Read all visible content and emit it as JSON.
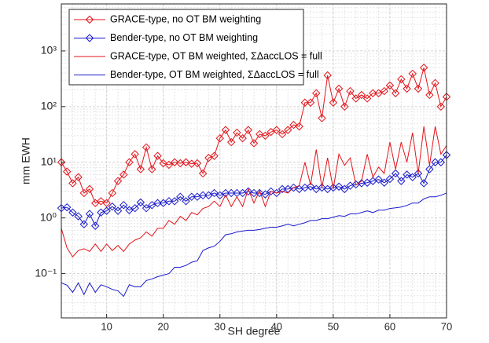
{
  "chart_data": {
    "type": "line",
    "xlabel": "SH degree",
    "ylabel": "mm EWH",
    "log_y": true,
    "grid": true,
    "minor_grid": true,
    "legend": "upper left",
    "xlim": [
      2,
      70
    ],
    "ylim": [
      0.016,
      7000
    ],
    "xticks": [
      10,
      20,
      30,
      40,
      50,
      60,
      70
    ],
    "yticks": [
      {
        "value": 0.1,
        "label": "10⁻¹"
      },
      {
        "value": 1,
        "label": "10⁰"
      },
      {
        "value": 10,
        "label": "10¹"
      },
      {
        "value": 100,
        "label": "10²"
      },
      {
        "value": 1000,
        "label": "10³"
      }
    ],
    "x": [
      2,
      3,
      4,
      5,
      6,
      7,
      8,
      9,
      10,
      11,
      12,
      13,
      14,
      15,
      16,
      17,
      18,
      19,
      20,
      21,
      22,
      23,
      24,
      25,
      26,
      27,
      28,
      29,
      30,
      31,
      32,
      33,
      34,
      35,
      36,
      37,
      38,
      39,
      40,
      41,
      42,
      43,
      44,
      45,
      46,
      47,
      48,
      49,
      50,
      51,
      52,
      53,
      54,
      55,
      56,
      57,
      58,
      59,
      60,
      61,
      62,
      63,
      64,
      65,
      66,
      67,
      68,
      69,
      70
    ],
    "series": [
      {
        "name": "GRACE-type, no OT BM weighting",
        "color": "#e3141b",
        "marker": "diamond",
        "values": [
          10,
          6.8,
          4.2,
          5.4,
          2.8,
          3.3,
          1.85,
          2.0,
          1.85,
          2.8,
          4.6,
          6,
          10,
          14,
          7.5,
          18.5,
          7.5,
          13,
          9.6,
          9,
          10,
          9.6,
          10,
          9.4,
          9.6,
          6.3,
          12,
          13,
          27,
          38,
          23,
          34,
          27,
          38,
          22,
          32,
          30,
          35,
          38,
          32,
          38,
          47,
          44,
          118,
          118,
          174,
          62,
          365,
          118,
          210,
          100,
          190,
          140,
          162,
          140,
          174,
          174,
          190,
          240,
          174,
          310,
          210,
          390,
          210,
          500,
          162,
          265,
          100,
          150
        ]
      },
      {
        "name": "Bender-type, no OT BM weighting",
        "color": "#1a1acb",
        "marker": "diamond",
        "values": [
          1.5,
          1.55,
          1.25,
          1.07,
          0.77,
          1.18,
          0.72,
          1.25,
          1.34,
          1.6,
          1.34,
          1.7,
          1.38,
          1.5,
          1.9,
          1.5,
          1.7,
          1.85,
          1.85,
          2.0,
          2.0,
          2.4,
          2.0,
          2.4,
          2.4,
          2.55,
          2.55,
          2.8,
          2.55,
          2.8,
          2.8,
          2.8,
          2.8,
          3.0,
          2.8,
          2.8,
          2.65,
          3.0,
          2.8,
          3.3,
          3.3,
          3.5,
          3.3,
          3.5,
          3.65,
          3.3,
          3.5,
          3.3,
          3.5,
          3.65,
          3.3,
          3.8,
          4.0,
          4.2,
          4.3,
          4.6,
          4.9,
          4.3,
          5.0,
          6.3,
          4.6,
          6,
          5.4,
          6.3,
          4.2,
          7.5,
          10,
          10,
          13.5
        ]
      },
      {
        "name": "GRACE-type, OT BM weighted, ΣΔaccLOS = full",
        "color": "#e3141b",
        "marker": "none",
        "values": [
          0.65,
          0.29,
          0.2,
          0.26,
          0.28,
          0.25,
          0.34,
          0.25,
          0.34,
          0.26,
          0.32,
          0.25,
          0.34,
          0.4,
          0.44,
          0.56,
          0.47,
          0.65,
          0.65,
          0.9,
          0.77,
          1.07,
          0.9,
          1.25,
          1.14,
          1.48,
          1.6,
          2.0,
          1.6,
          2.6,
          1.6,
          2.4,
          1.6,
          3.3,
          1.85,
          3.1,
          1.6,
          3.0,
          2.8,
          3.0,
          2.8,
          3.5,
          3.8,
          10,
          3.9,
          17,
          3.5,
          12,
          3.3,
          14,
          8.8,
          12,
          3.9,
          4.6,
          14,
          5.4,
          8.2,
          6.3,
          23,
          7.5,
          23,
          10,
          34,
          6.3,
          44,
          8.8,
          44,
          14,
          20
        ]
      },
      {
        "name": "Bender-type, OT BM weighted, ΣΔaccLOS = full",
        "color": "#1a1acb",
        "marker": "none",
        "values": [
          0.068,
          0.062,
          0.046,
          0.068,
          0.042,
          0.068,
          0.046,
          0.063,
          0.058,
          0.052,
          0.049,
          0.039,
          0.063,
          0.058,
          0.058,
          0.075,
          0.08,
          0.088,
          0.094,
          0.1,
          0.13,
          0.13,
          0.14,
          0.16,
          0.17,
          0.26,
          0.29,
          0.31,
          0.38,
          0.5,
          0.52,
          0.56,
          0.58,
          0.6,
          0.6,
          0.62,
          0.65,
          0.68,
          0.68,
          0.72,
          0.77,
          0.72,
          0.77,
          0.82,
          0.9,
          0.9,
          0.97,
          0.97,
          1.03,
          1.1,
          1.07,
          1.18,
          1.18,
          1.25,
          1.34,
          1.25,
          1.38,
          1.38,
          1.48,
          1.52,
          1.57,
          1.68,
          1.85,
          1.85,
          2.2,
          2.4,
          2.4,
          2.55,
          2.8
        ]
      }
    ]
  }
}
